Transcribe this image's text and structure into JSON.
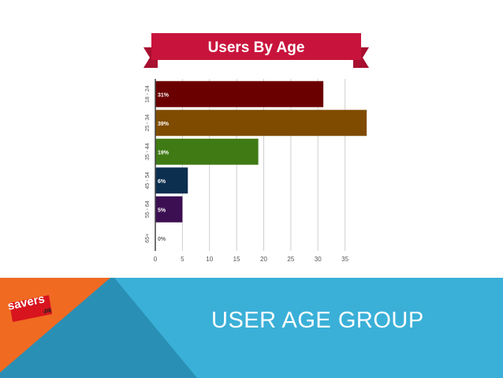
{
  "slide": {
    "title": "USER AGE GROUP",
    "logo": {
      "text": "savers",
      "suffix": ".pk"
    },
    "colors": {
      "footer": "#3ab0d8",
      "footer_dark": "#2a8fb4",
      "orange": "#f06a22",
      "banner": "#c8143c"
    }
  },
  "chart_data": {
    "type": "bar",
    "orientation": "horizontal",
    "title": "Users By Age",
    "categories": [
      "18 - 24",
      "25 - 34",
      "35 - 44",
      "45 - 54",
      "55 - 64",
      "65+"
    ],
    "values": [
      31,
      39,
      19,
      6,
      5,
      0
    ],
    "data_labels": [
      "31%",
      "39%",
      "19%",
      "6%",
      "5%",
      "0%"
    ],
    "colors": [
      "#6b0000",
      "#7f4b00",
      "#3f7a14",
      "#0d2f4f",
      "#3c0f52",
      "#999999"
    ],
    "xticks": [
      0,
      5,
      10,
      15,
      20,
      25,
      30,
      35
    ],
    "xtick_labels": [
      "0",
      "5",
      "10",
      "15",
      "20",
      "25",
      "30",
      "35"
    ],
    "xlim": [
      0,
      40
    ],
    "grid": true,
    "legend": "none"
  }
}
